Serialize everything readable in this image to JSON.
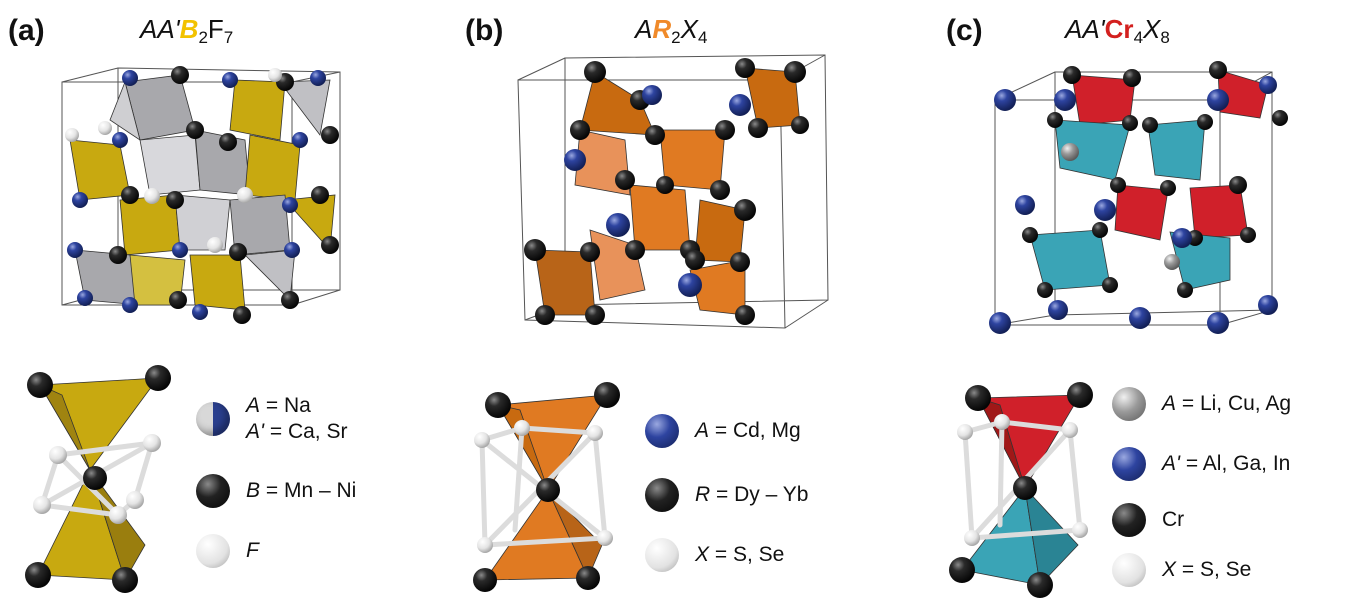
{
  "colors": {
    "yellow": "#c8a910",
    "gray_poly": "#a8a8ac",
    "orange": "#e07a22",
    "red": "#d0202a",
    "teal": "#3aa4b6",
    "blue_atom": "#2a3f8e",
    "black_atom": "#141414",
    "white_atom": "#e8e8e8",
    "gray_atom": "#8a8a8a"
  },
  "panels": [
    {
      "label": "(a)",
      "title": {
        "part1": "AA'",
        "element": "B",
        "sub1": "2",
        "part2": "F",
        "sub2": "7",
        "element_color": "#f2c200"
      },
      "legend": [
        {
          "atom": "half-blue-white",
          "line1_sym": "A",
          "line1_rest": " = Na",
          "line2_sym": "A'",
          "line2_rest": " = Ca, Sr"
        },
        {
          "atom": "black",
          "sym": "B",
          "rest": " = Mn – Ni"
        },
        {
          "atom": "white",
          "sym": "F",
          "rest": ""
        }
      ]
    },
    {
      "label": "(b)",
      "title": {
        "part1": "A",
        "element": "R",
        "sub1": "2",
        "part2": "X",
        "sub2": "4",
        "element_color": "#f08a2a"
      },
      "legend": [
        {
          "atom": "blue",
          "sym": "A",
          "rest": " = Cd, Mg"
        },
        {
          "atom": "black",
          "sym": "R",
          "rest": " = Dy – Yb"
        },
        {
          "atom": "white",
          "sym": "X",
          "rest": " = S, Se"
        }
      ]
    },
    {
      "label": "(c)",
      "title": {
        "part1": "AA'",
        "element": "Cr",
        "sub1": "4",
        "part2": "X",
        "sub2": "8",
        "element_color": "#d3201f"
      },
      "legend": [
        {
          "atom": "gray",
          "sym": "A",
          "rest": " = Li, Cu, Ag"
        },
        {
          "atom": "blue",
          "sym": "A'",
          "rest": " = Al, Ga, In"
        },
        {
          "atom": "black",
          "sym": "",
          "rest": "Cr"
        },
        {
          "atom": "white",
          "sym": "X",
          "rest": " = S, Se"
        }
      ]
    }
  ]
}
